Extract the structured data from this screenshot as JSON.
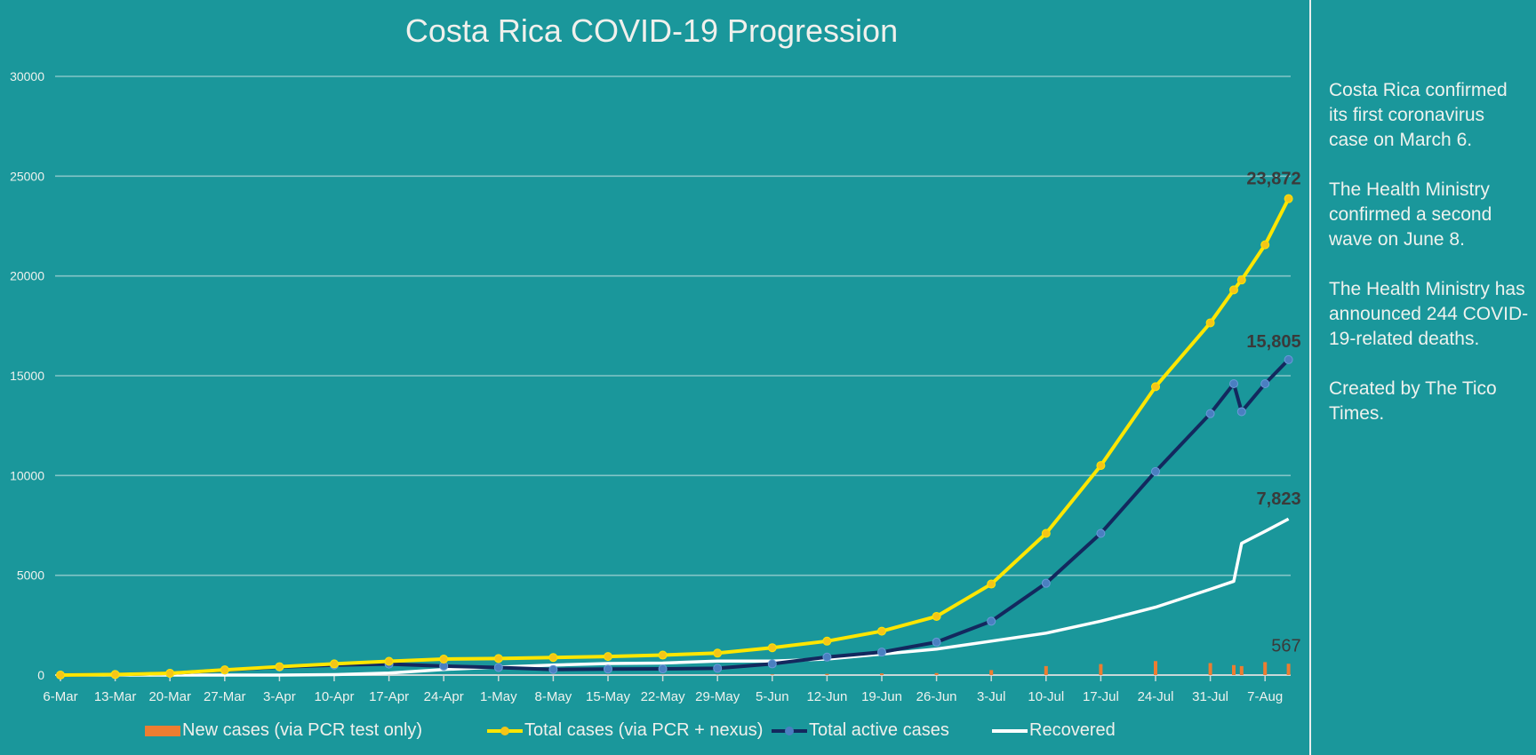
{
  "chart_data": {
    "type": "line",
    "title": "Costa Rica COVID-19 Progression",
    "xlabel": "",
    "ylabel": "",
    "ylim": [
      0,
      30000
    ],
    "yticks": [
      "0",
      "5000",
      "10000",
      "15000",
      "20000",
      "25000",
      "30000"
    ],
    "xticks": [
      "6-Mar",
      "13-Mar",
      "20-Mar",
      "27-Mar",
      "3-Apr",
      "10-Apr",
      "17-Apr",
      "24-Apr",
      "1-May",
      "8-May",
      "15-May",
      "22-May",
      "29-May",
      "5-Jun",
      "12-Jun",
      "19-Jun",
      "26-Jun",
      "3-Jul",
      "10-Jul",
      "17-Jul",
      "24-Jul",
      "31-Jul",
      "7-Aug"
    ],
    "grid": true,
    "legend_position": "bottom",
    "x": [
      "6-Mar",
      "13-Mar",
      "20-Mar",
      "27-Mar",
      "3-Apr",
      "10-Apr",
      "17-Apr",
      "24-Apr",
      "1-May",
      "8-May",
      "15-May",
      "22-May",
      "29-May",
      "5-Jun",
      "12-Jun",
      "19-Jun",
      "26-Jun",
      "3-Jul",
      "10-Jul",
      "17-Jul",
      "24-Jul",
      "31-Jul",
      "3-Aug",
      "4-Aug",
      "7-Aug",
      "10-Aug"
    ],
    "series": [
      {
        "name": "New cases (via PCR test only)",
        "type": "bar",
        "color": "#ed7d31",
        "values": [
          0,
          5,
          10,
          20,
          20,
          10,
          5,
          3,
          5,
          5,
          10,
          8,
          15,
          30,
          60,
          80,
          100,
          250,
          450,
          550,
          700,
          600,
          500,
          450,
          650,
          567
        ]
      },
      {
        "name": "Total cases (via PCR + nexus)",
        "type": "line",
        "color": "#ffe600",
        "marker": "#f5c518",
        "values": [
          1,
          27,
          90,
          260,
          420,
          560,
          690,
          800,
          830,
          880,
          930,
          1000,
          1100,
          1370,
          1700,
          2200,
          2940,
          4560,
          7100,
          10500,
          14450,
          17650,
          19300,
          19800,
          21560,
          23872
        ]
      },
      {
        "name": "Total active cases",
        "type": "line",
        "color": "#13285e",
        "marker": "#4a7fc1",
        "values": [
          1,
          26,
          88,
          250,
          400,
          500,
          550,
          450,
          380,
          280,
          300,
          310,
          340,
          560,
          900,
          1150,
          1650,
          2700,
          4600,
          7100,
          10200,
          13100,
          14600,
          13200,
          14600,
          15805
        ]
      },
      {
        "name": "Recovered",
        "type": "line",
        "color": "#ffffff",
        "values": [
          0,
          0,
          0,
          0,
          0,
          20,
          100,
          280,
          400,
          500,
          580,
          600,
          700,
          700,
          800,
          1050,
          1300,
          1700,
          2100,
          2700,
          3400,
          4300,
          4700,
          6600,
          7200,
          7823
        ]
      }
    ],
    "data_labels": {
      "total": "23,872",
      "active": "15,805",
      "recovered": "7,823",
      "new": "567"
    }
  },
  "sidebar": {
    "paragraphs": [
      "Costa Rica confirmed its first coronavirus case on March 6.",
      "The Health Ministry confirmed a second wave on June 8.",
      "The Health Ministry has announced 244 COVID-19-related deaths.",
      "Created by The Tico Times."
    ]
  }
}
